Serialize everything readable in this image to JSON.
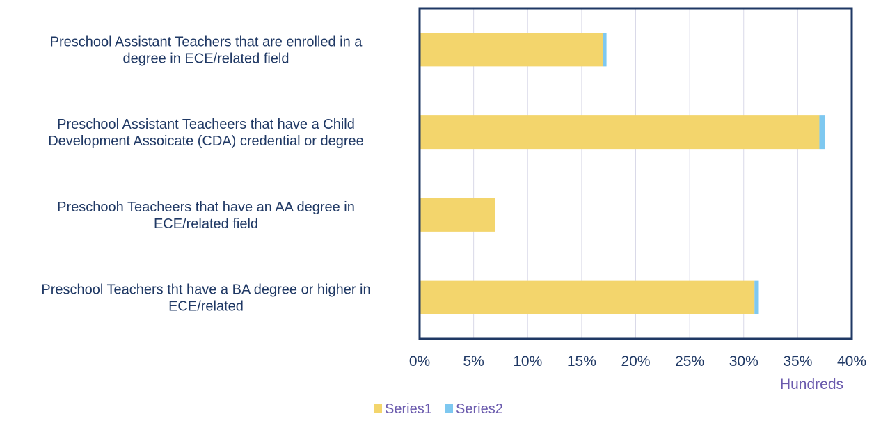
{
  "chart_data": {
    "type": "bar",
    "orientation": "horizontal",
    "stacked": true,
    "categories": [
      [
        "Preschool Assistant Teachers that are enrolled in a",
        "degree in ECE/related field"
      ],
      [
        "Preschool Assistant Teacheers that have a Child",
        "Development Assoicate (CDA) credential or degree"
      ],
      [
        "Preschooh Teacheers that have an AA degree in",
        "ECE/related field"
      ],
      [
        "Preschool Teachers tht have a BA degree or higher in",
        "ECE/related"
      ]
    ],
    "series": [
      {
        "name": "Series1",
        "values": [
          17.0,
          37.0,
          7.0,
          31.0
        ],
        "color": "#f3d56c"
      },
      {
        "name": "Series2",
        "values": [
          0.3,
          0.5,
          0.0,
          0.4
        ],
        "color": "#7ec8f0"
      }
    ],
    "x_ticks": [
      "0%",
      "5%",
      "10%",
      "15%",
      "20%",
      "25%",
      "30%",
      "35%",
      "40%"
    ],
    "xlim": [
      0,
      40
    ],
    "display_unit": "Hundreds",
    "grid": true,
    "legend": "bottom",
    "colors": {
      "axis": "#1f3864",
      "grid": "#d9d9e8",
      "unit_text": "#6a5aad",
      "legend_text": "#6a5aad"
    }
  }
}
